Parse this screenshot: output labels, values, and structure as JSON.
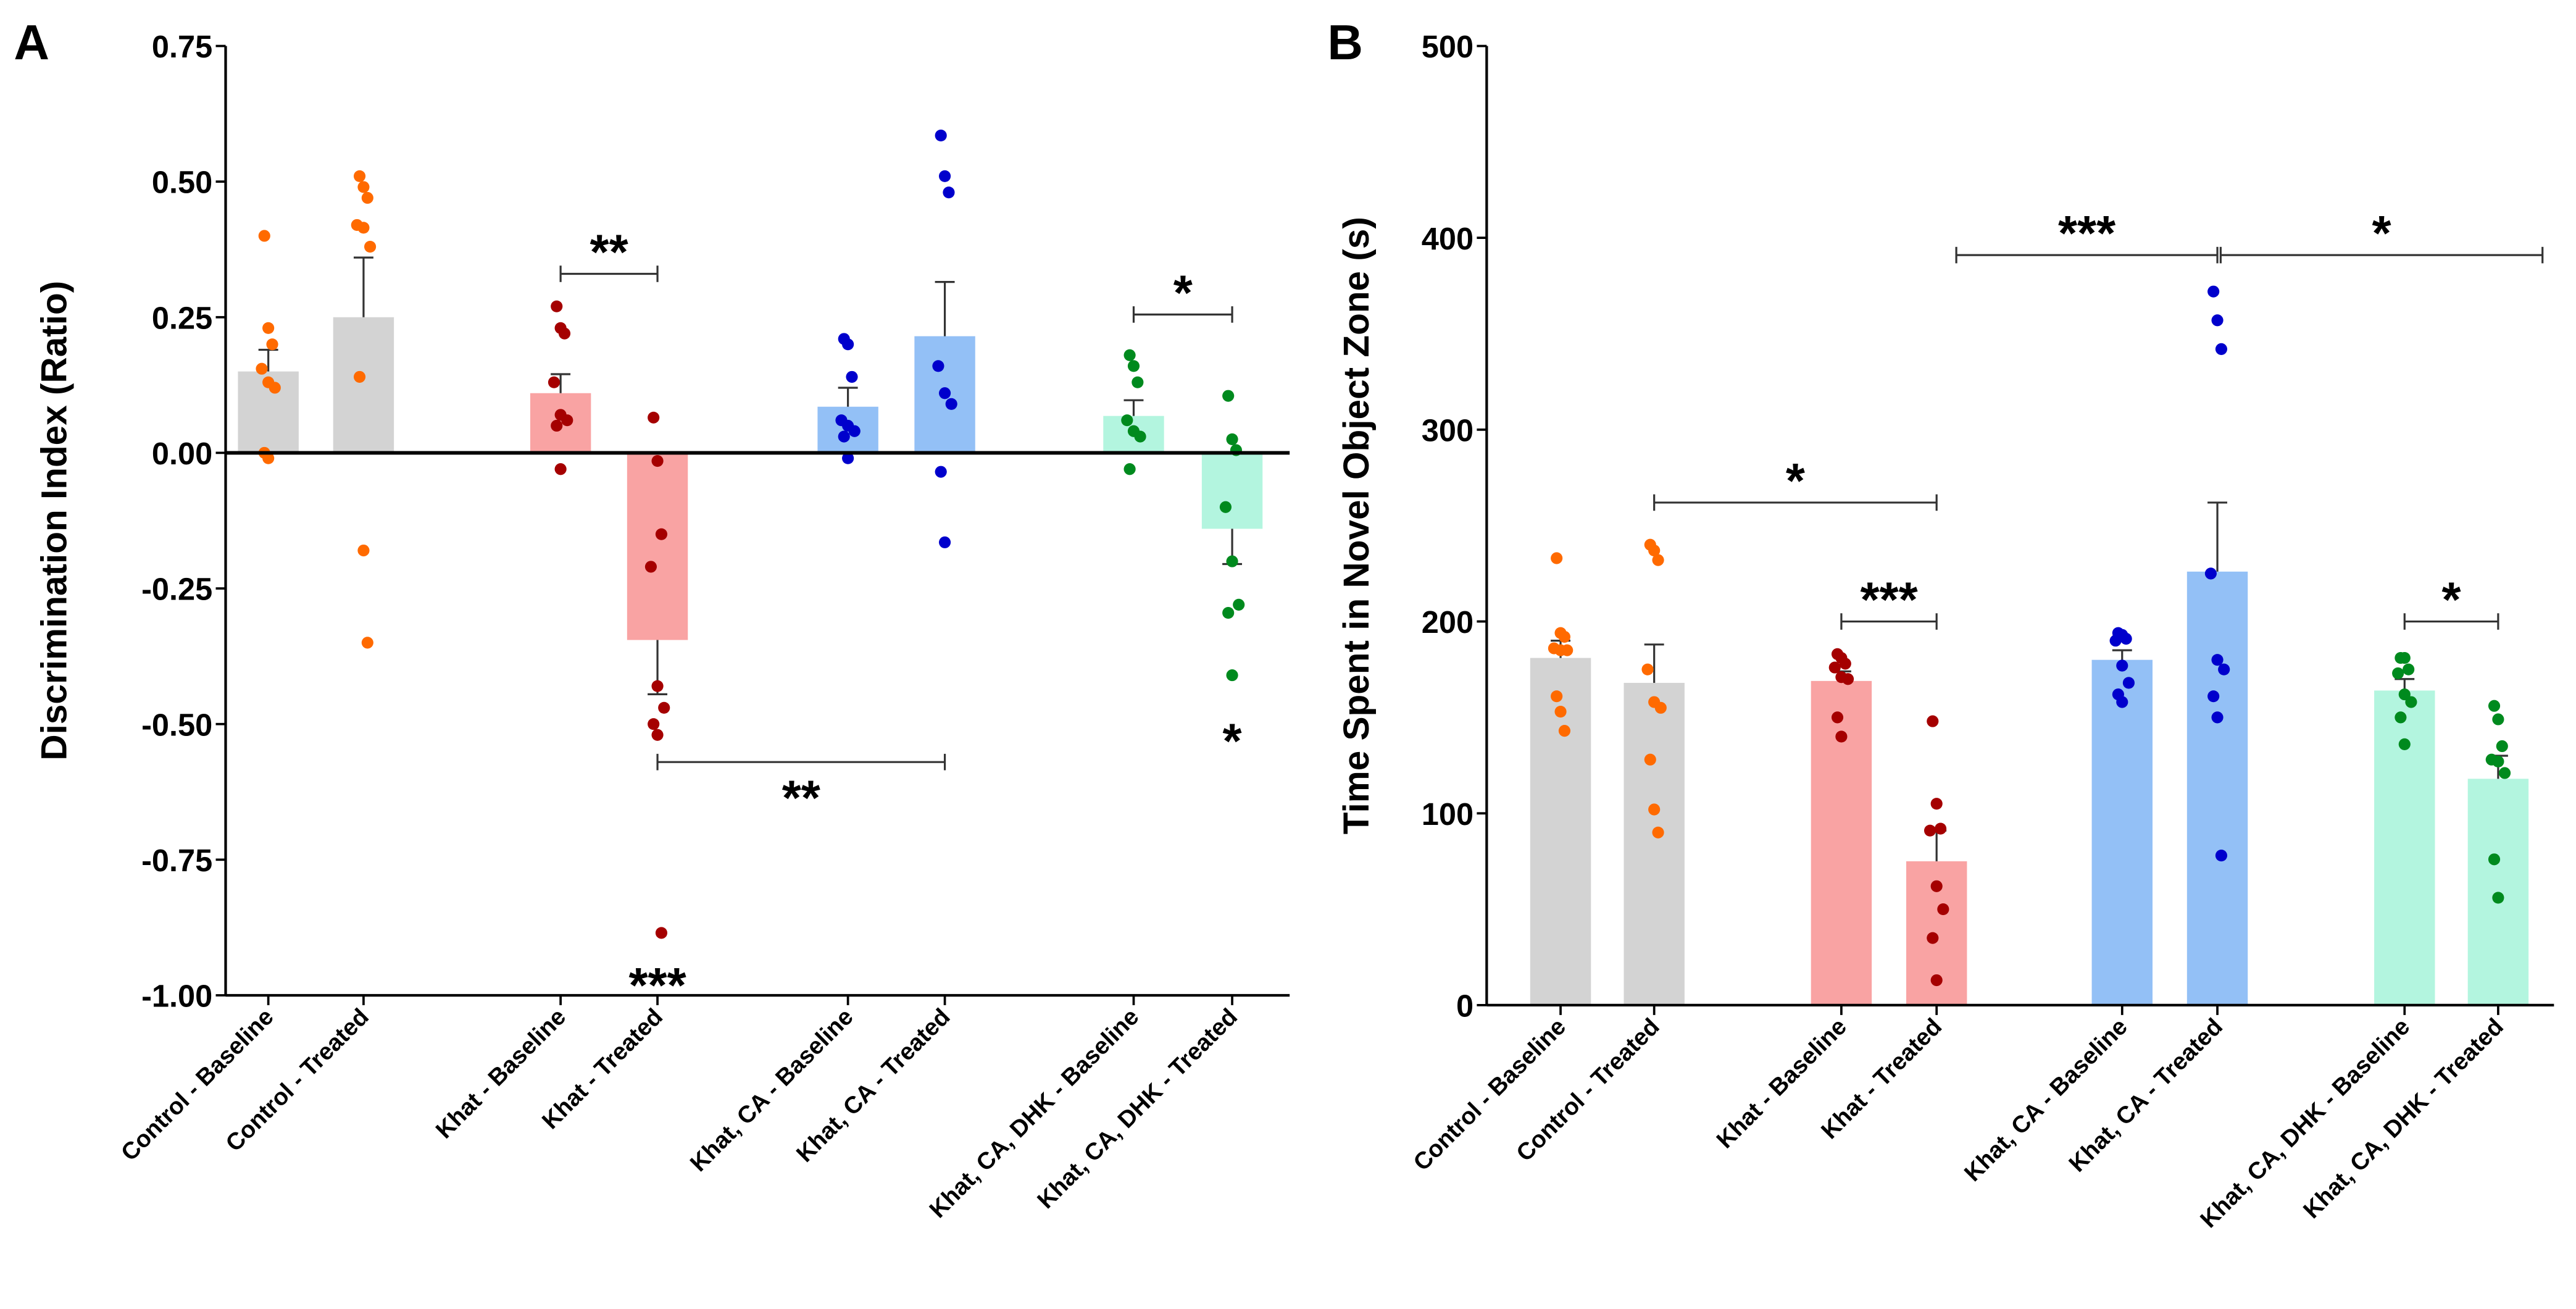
{
  "chart_data": [
    {
      "panel_label": "A",
      "type": "bar",
      "title": "",
      "xlabel": "",
      "ylabel": "Discrimination Index (Ratio)",
      "ylim": [
        -1.0,
        0.75
      ],
      "yticks": [
        0.75,
        0.5,
        0.25,
        0.0,
        -0.25,
        -0.5,
        -0.75,
        -1.0
      ],
      "ytick_labels": [
        "0.75",
        "0.50",
        "0.25",
        "0.00",
        "-0.25",
        "-0.50",
        "-0.75",
        "-1.00"
      ],
      "grid": false,
      "categories": [
        "Control - Baseline",
        "Control - Treated",
        "Khat - Baseline",
        "Khat - Treated",
        "Khat, CA - Baseline",
        "Khat, CA - Treated",
        "Khat, CA, DHK - Baseline",
        "Khat, CA, DHK - Treated"
      ],
      "means": [
        0.15,
        0.25,
        0.11,
        -0.345,
        0.085,
        0.215,
        0.068,
        -0.14
      ],
      "sem_ends": [
        0.19,
        0.36,
        0.145,
        -0.445,
        0.12,
        0.315,
        0.097,
        -0.205
      ],
      "points": [
        [
          0.4,
          0.23,
          0.2,
          0.155,
          0.13,
          0.12,
          0.0,
          -0.01
        ],
        [
          0.51,
          0.49,
          0.47,
          0.42,
          0.415,
          0.38,
          0.14,
          -0.18,
          -0.35
        ],
        [
          0.27,
          0.23,
          0.22,
          0.13,
          0.07,
          0.06,
          0.05,
          -0.03
        ],
        [
          0.065,
          -0.015,
          -0.15,
          -0.21,
          -0.43,
          -0.47,
          -0.5,
          -0.52,
          -0.885
        ],
        [
          0.21,
          0.2,
          0.14,
          0.06,
          0.05,
          0.04,
          0.03,
          -0.01
        ],
        [
          0.585,
          0.51,
          0.48,
          0.16,
          0.11,
          0.09,
          -0.035,
          -0.165
        ],
        [
          0.18,
          0.16,
          0.13,
          0.06,
          0.04,
          0.03,
          -0.03
        ],
        [
          0.105,
          0.025,
          0.005,
          -0.1,
          -0.2,
          -0.28,
          -0.295,
          -0.41
        ]
      ],
      "brackets": [
        {
          "from": 2,
          "to": 3,
          "y": 0.33,
          "label": "**",
          "label_pos": "above"
        },
        {
          "from": 6,
          "to": 7,
          "y": 0.255,
          "label": "*",
          "label_pos": "above"
        },
        {
          "from": 3,
          "to": 5,
          "y": -0.57,
          "label": "**",
          "label_pos": "below"
        }
      ],
      "annotations": [
        {
          "category": 3,
          "y": -0.97,
          "label": "***"
        },
        {
          "category": 7,
          "y": -0.52,
          "label": "*"
        }
      ]
    },
    {
      "panel_label": "B",
      "type": "bar",
      "title": "",
      "xlabel": "",
      "ylabel": "Time Spent in Novel Object Zone  (s)",
      "ylim": [
        0,
        500
      ],
      "yticks": [
        500,
        400,
        300,
        200,
        100,
        0
      ],
      "ytick_labels": [
        "500",
        "400",
        "300",
        "200",
        "100",
        "0"
      ],
      "grid": false,
      "categories": [
        "Control - Baseline",
        "Control - Treated",
        "Khat - Baseline",
        "Khat - Treated",
        "Khat, CA - Baseline",
        "Khat, CA - Treated",
        "Khat, CA, DHK - Baseline",
        "Khat, CA, DHK - Treated"
      ],
      "means": [
        181,
        168,
        169,
        75,
        180,
        226,
        164,
        118
      ],
      "sem_ends": [
        190,
        188,
        174,
        91,
        185,
        262,
        170,
        130
      ],
      "points": [
        [
          233,
          194,
          192,
          186,
          185,
          185,
          161,
          153,
          143
        ],
        [
          240,
          237,
          232,
          175,
          158,
          155,
          128,
          102,
          90
        ],
        [
          183,
          181,
          178,
          176,
          171,
          170,
          150,
          140
        ],
        [
          148,
          105,
          92,
          91,
          62,
          50,
          35,
          13
        ],
        [
          194,
          193,
          191,
          190,
          177,
          168,
          162,
          158
        ],
        [
          372,
          357,
          342,
          225,
          180,
          175,
          161,
          150,
          78
        ],
        [
          181,
          181,
          175,
          173,
          162,
          158,
          150,
          136
        ],
        [
          156,
          149,
          135,
          128,
          127,
          121,
          76,
          56
        ]
      ],
      "brackets": [
        {
          "from": 1,
          "to": 3,
          "y": 262,
          "label": "*",
          "label_pos": "above"
        },
        {
          "from": 2,
          "to": 3,
          "y": 200,
          "label": "***",
          "label_pos": "above"
        },
        {
          "from": 3,
          "to": 5,
          "y": 391,
          "label": "***",
          "label_pos": "above"
        },
        {
          "from": 5,
          "to": 8,
          "y": 391,
          "label": "*",
          "label_pos": "above"
        },
        {
          "from": 6,
          "to": 7,
          "y": 200,
          "label": "*",
          "label_pos": "above"
        }
      ],
      "annotations": []
    }
  ],
  "colors": {
    "bars": [
      "#d3d3d3",
      "#d3d3d3",
      "#f9a3a3",
      "#f9a3a3",
      "#93c0f6",
      "#93c0f6",
      "#b3f5df",
      "#b3f5df"
    ],
    "points": [
      "#ff6a00",
      "#ff6a00",
      "#a50000",
      "#a50000",
      "#0000cc",
      "#0000cc",
      "#008a1e",
      "#008a1e"
    ]
  }
}
